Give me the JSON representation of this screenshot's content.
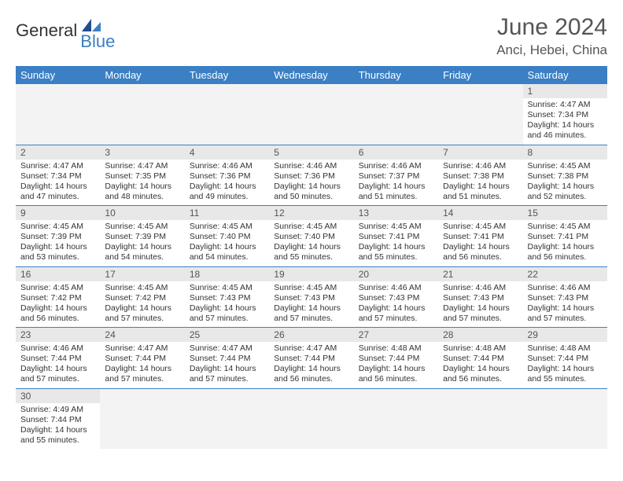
{
  "logo": {
    "text_main": "General",
    "text_sub": "Blue",
    "brand_color": "#3b7fc4"
  },
  "title": {
    "month_year": "June 2024",
    "location": "Anci, Hebei, China"
  },
  "colors": {
    "header_bg": "#3b7fc4",
    "header_text": "#ffffff",
    "daynum_bg": "#e8e8e8",
    "row_border": "#3b7fc4",
    "empty_bg": "#f3f3f3",
    "text": "#333333"
  },
  "weekdays": [
    "Sunday",
    "Monday",
    "Tuesday",
    "Wednesday",
    "Thursday",
    "Friday",
    "Saturday"
  ],
  "weeks": [
    [
      null,
      null,
      null,
      null,
      null,
      null,
      {
        "day": "1",
        "sunrise": "4:47 AM",
        "sunset": "7:34 PM",
        "daylight_h": "14",
        "daylight_m": "46"
      }
    ],
    [
      {
        "day": "2",
        "sunrise": "4:47 AM",
        "sunset": "7:34 PM",
        "daylight_h": "14",
        "daylight_m": "47"
      },
      {
        "day": "3",
        "sunrise": "4:47 AM",
        "sunset": "7:35 PM",
        "daylight_h": "14",
        "daylight_m": "48"
      },
      {
        "day": "4",
        "sunrise": "4:46 AM",
        "sunset": "7:36 PM",
        "daylight_h": "14",
        "daylight_m": "49"
      },
      {
        "day": "5",
        "sunrise": "4:46 AM",
        "sunset": "7:36 PM",
        "daylight_h": "14",
        "daylight_m": "50"
      },
      {
        "day": "6",
        "sunrise": "4:46 AM",
        "sunset": "7:37 PM",
        "daylight_h": "14",
        "daylight_m": "51"
      },
      {
        "day": "7",
        "sunrise": "4:46 AM",
        "sunset": "7:38 PM",
        "daylight_h": "14",
        "daylight_m": "51"
      },
      {
        "day": "8",
        "sunrise": "4:45 AM",
        "sunset": "7:38 PM",
        "daylight_h": "14",
        "daylight_m": "52"
      }
    ],
    [
      {
        "day": "9",
        "sunrise": "4:45 AM",
        "sunset": "7:39 PM",
        "daylight_h": "14",
        "daylight_m": "53"
      },
      {
        "day": "10",
        "sunrise": "4:45 AM",
        "sunset": "7:39 PM",
        "daylight_h": "14",
        "daylight_m": "54"
      },
      {
        "day": "11",
        "sunrise": "4:45 AM",
        "sunset": "7:40 PM",
        "daylight_h": "14",
        "daylight_m": "54"
      },
      {
        "day": "12",
        "sunrise": "4:45 AM",
        "sunset": "7:40 PM",
        "daylight_h": "14",
        "daylight_m": "55"
      },
      {
        "day": "13",
        "sunrise": "4:45 AM",
        "sunset": "7:41 PM",
        "daylight_h": "14",
        "daylight_m": "55"
      },
      {
        "day": "14",
        "sunrise": "4:45 AM",
        "sunset": "7:41 PM",
        "daylight_h": "14",
        "daylight_m": "56"
      },
      {
        "day": "15",
        "sunrise": "4:45 AM",
        "sunset": "7:41 PM",
        "daylight_h": "14",
        "daylight_m": "56"
      }
    ],
    [
      {
        "day": "16",
        "sunrise": "4:45 AM",
        "sunset": "7:42 PM",
        "daylight_h": "14",
        "daylight_m": "56"
      },
      {
        "day": "17",
        "sunrise": "4:45 AM",
        "sunset": "7:42 PM",
        "daylight_h": "14",
        "daylight_m": "57"
      },
      {
        "day": "18",
        "sunrise": "4:45 AM",
        "sunset": "7:43 PM",
        "daylight_h": "14",
        "daylight_m": "57"
      },
      {
        "day": "19",
        "sunrise": "4:45 AM",
        "sunset": "7:43 PM",
        "daylight_h": "14",
        "daylight_m": "57"
      },
      {
        "day": "20",
        "sunrise": "4:46 AM",
        "sunset": "7:43 PM",
        "daylight_h": "14",
        "daylight_m": "57"
      },
      {
        "day": "21",
        "sunrise": "4:46 AM",
        "sunset": "7:43 PM",
        "daylight_h": "14",
        "daylight_m": "57"
      },
      {
        "day": "22",
        "sunrise": "4:46 AM",
        "sunset": "7:43 PM",
        "daylight_h": "14",
        "daylight_m": "57"
      }
    ],
    [
      {
        "day": "23",
        "sunrise": "4:46 AM",
        "sunset": "7:44 PM",
        "daylight_h": "14",
        "daylight_m": "57"
      },
      {
        "day": "24",
        "sunrise": "4:47 AM",
        "sunset": "7:44 PM",
        "daylight_h": "14",
        "daylight_m": "57"
      },
      {
        "day": "25",
        "sunrise": "4:47 AM",
        "sunset": "7:44 PM",
        "daylight_h": "14",
        "daylight_m": "57"
      },
      {
        "day": "26",
        "sunrise": "4:47 AM",
        "sunset": "7:44 PM",
        "daylight_h": "14",
        "daylight_m": "56"
      },
      {
        "day": "27",
        "sunrise": "4:48 AM",
        "sunset": "7:44 PM",
        "daylight_h": "14",
        "daylight_m": "56"
      },
      {
        "day": "28",
        "sunrise": "4:48 AM",
        "sunset": "7:44 PM",
        "daylight_h": "14",
        "daylight_m": "56"
      },
      {
        "day": "29",
        "sunrise": "4:48 AM",
        "sunset": "7:44 PM",
        "daylight_h": "14",
        "daylight_m": "55"
      }
    ],
    [
      {
        "day": "30",
        "sunrise": "4:49 AM",
        "sunset": "7:44 PM",
        "daylight_h": "14",
        "daylight_m": "55"
      },
      null,
      null,
      null,
      null,
      null,
      null
    ]
  ],
  "labels": {
    "sunrise": "Sunrise:",
    "sunset": "Sunset:",
    "daylight_prefix": "Daylight:",
    "hours_word": "hours",
    "and_word": "and",
    "minutes_word": "minutes."
  }
}
